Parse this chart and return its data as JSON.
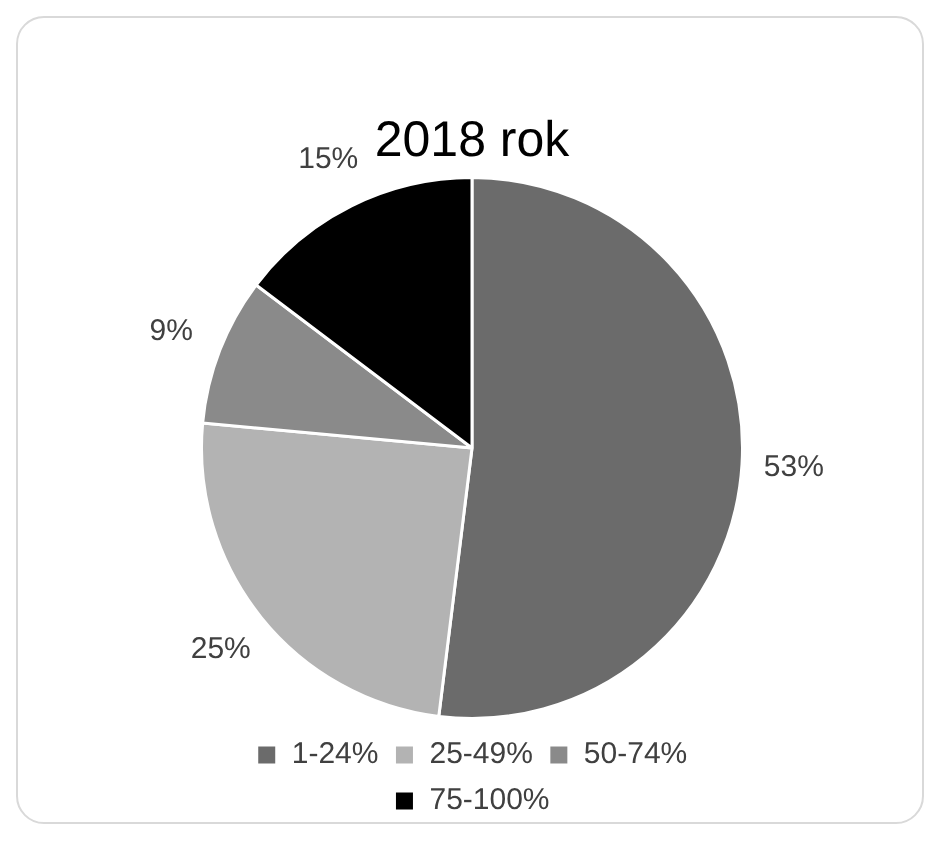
{
  "chart_data": {
    "type": "pie",
    "title": "2018 rok",
    "categories": [
      "1-24%",
      "25-49%",
      "50-74%",
      "75-100%"
    ],
    "values": [
      53,
      25,
      9,
      15
    ],
    "colors": [
      "#6b6b6b",
      "#b3b3b3",
      "#8a8a8a",
      "#000000"
    ],
    "value_labels": [
      "53%",
      "25%",
      "9%",
      "15%"
    ],
    "legend": "bottom"
  }
}
